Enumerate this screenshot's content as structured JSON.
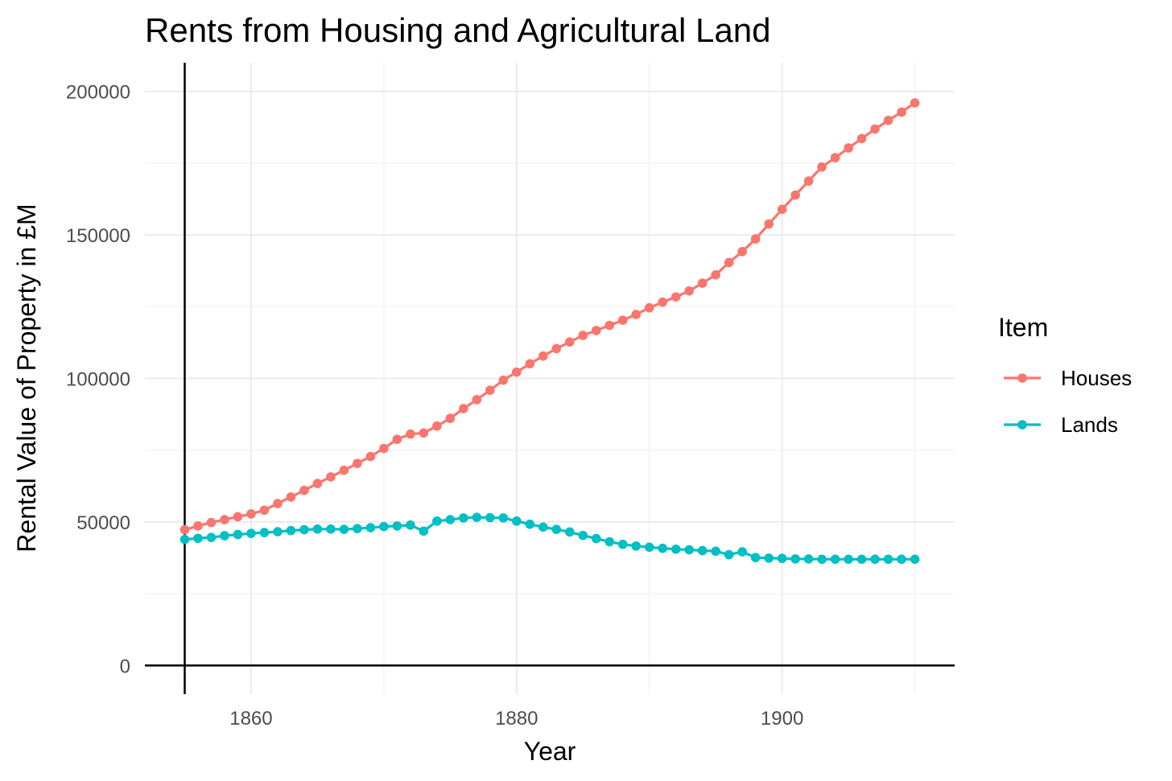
{
  "chart_data": {
    "type": "line",
    "title": "Rents from Housing and Agricultural Land",
    "xlabel": "Year",
    "ylabel": "Rental Value of Property in £M",
    "xlim": [
      1852,
      1913
    ],
    "ylim": [
      -10000,
      210000
    ],
    "xticks": [
      1860,
      1880,
      1900
    ],
    "yticks": [
      0,
      50000,
      100000,
      150000,
      200000
    ],
    "xtick_labels": [
      "1860",
      "1880",
      "1900"
    ],
    "ytick_labels": [
      "0",
      "50000",
      "100000",
      "150000",
      "200000"
    ],
    "vline_x": 1855,
    "hline_y": 0,
    "legend": {
      "title": "Item",
      "position": "right"
    },
    "x": [
      1855,
      1856,
      1857,
      1858,
      1859,
      1860,
      1861,
      1862,
      1863,
      1864,
      1865,
      1866,
      1867,
      1868,
      1869,
      1870,
      1871,
      1872,
      1873,
      1874,
      1875,
      1876,
      1877,
      1878,
      1879,
      1880,
      1881,
      1882,
      1883,
      1884,
      1885,
      1886,
      1887,
      1888,
      1889,
      1890,
      1891,
      1892,
      1893,
      1894,
      1895,
      1896,
      1897,
      1898,
      1899,
      1900,
      1901,
      1902,
      1903,
      1904,
      1905,
      1906,
      1907,
      1908,
      1909,
      1910
    ],
    "series": [
      {
        "name": "Houses",
        "color": "#F8766D",
        "values": [
          47300,
          48600,
          49800,
          50800,
          51800,
          52800,
          54100,
          56400,
          58700,
          61000,
          63400,
          65700,
          68000,
          70400,
          72800,
          75600,
          78800,
          80600,
          81000,
          83400,
          86100,
          89500,
          92600,
          95900,
          99400,
          102200,
          105100,
          107800,
          110400,
          112700,
          115000,
          116700,
          118500,
          120300,
          122300,
          124600,
          126600,
          128400,
          130500,
          133200,
          136100,
          140400,
          144200,
          148600,
          153800,
          158900,
          163900,
          168800,
          173700,
          176900,
          180300,
          183600,
          186900,
          189900,
          192800,
          196000
        ]
      },
      {
        "name": "Lands",
        "color": "#00BFC4",
        "values": [
          43900,
          44300,
          44600,
          45200,
          45600,
          46000,
          46300,
          46600,
          47000,
          47300,
          47500,
          47500,
          47400,
          47700,
          48000,
          48400,
          48600,
          48900,
          46800,
          50300,
          50800,
          51400,
          51600,
          51500,
          51400,
          50300,
          49200,
          48200,
          47400,
          46500,
          45300,
          44200,
          43100,
          42200,
          41600,
          41200,
          40800,
          40500,
          40300,
          40000,
          39800,
          38600,
          39600,
          37600,
          37400,
          37300,
          37100,
          37100,
          37000,
          37000,
          37000,
          37000,
          37000,
          37000,
          37000,
          37000
        ]
      }
    ]
  }
}
